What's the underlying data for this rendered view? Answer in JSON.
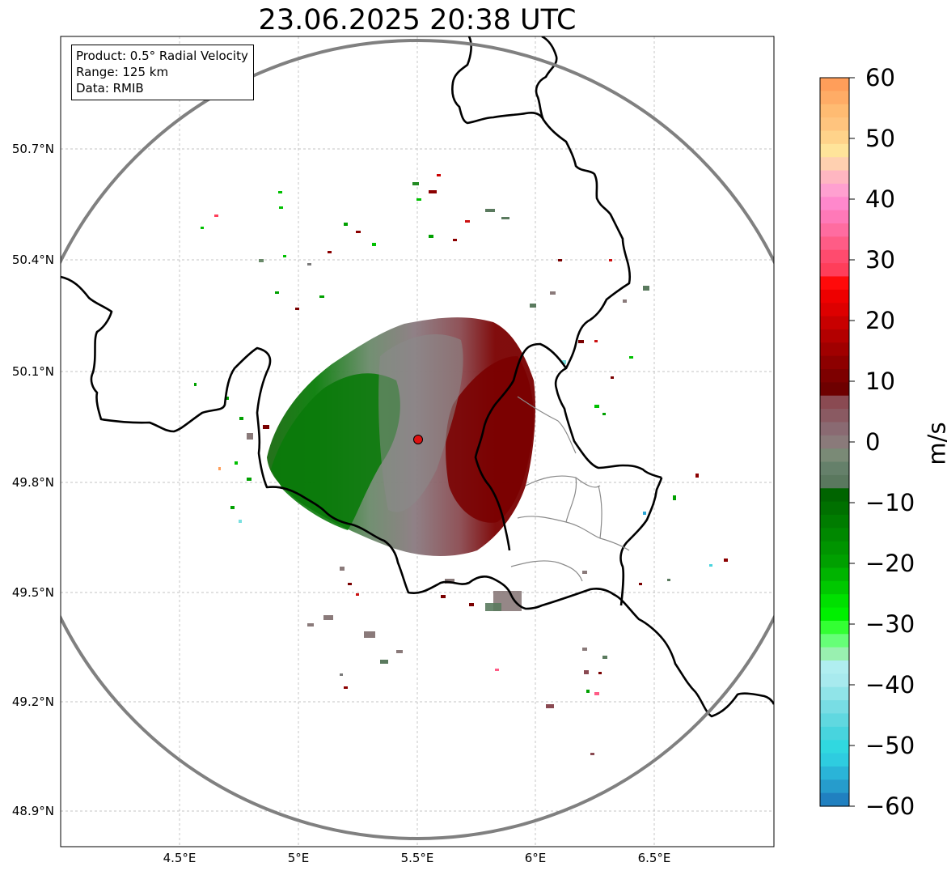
{
  "title": "23.06.2025 20:38 UTC",
  "info": {
    "product": "Product: 0.5° Radial Velocity",
    "range": "Range: 125 km",
    "data": "Data: RMIB"
  },
  "lat_ticks": [
    "50.7°N",
    "50.4°N",
    "50.1°N",
    "49.8°N",
    "49.5°N",
    "49.2°N",
    "48.9°N"
  ],
  "lon_ticks": [
    "4.5°E",
    "5°E",
    "5.5°E",
    "6°E",
    "6.5°E"
  ],
  "colorbar": {
    "unit": "m/s",
    "ticks": [
      "60",
      "50",
      "40",
      "30",
      "20",
      "10",
      "0",
      "−10",
      "−20",
      "−30",
      "−40",
      "−50",
      "−60"
    ],
    "vmin": -60,
    "vmax": 60,
    "colors_top_to_bottom": [
      "#ff9e5a",
      "#ffac66",
      "#ffbb72",
      "#ffc47e",
      "#ffd38a",
      "#ffe49a",
      "#ffd0b0",
      "#ffb6c1",
      "#ffa0d0",
      "#ff88cc",
      "#ff79b8",
      "#ff6ca0",
      "#ff5c86",
      "#ff4b6e",
      "#ff3e5a",
      "#ff0a0a",
      "#ee0000",
      "#dd0000",
      "#c80000",
      "#b30000",
      "#a00000",
      "#8d0000",
      "#7d0000",
      "#6e0000",
      "#8a4a52",
      "#8a5a62",
      "#8a6a72",
      "#8a7a7a",
      "#7a8a76",
      "#65806a",
      "#5a785e",
      "#006400",
      "#007000",
      "#007c00",
      "#008800",
      "#009400",
      "#00a000",
      "#00b400",
      "#00c800",
      "#00e000",
      "#00f000",
      "#33ff33",
      "#66ff77",
      "#99f0b0",
      "#b0eef0",
      "#a8eaee",
      "#90e4e8",
      "#78dde4",
      "#60d8e0",
      "#48d4de",
      "#30d8e0",
      "#2ecce0",
      "#2ab4d8",
      "#269ccc",
      "#2080c0"
    ]
  },
  "radar_site": {
    "lon": 5.505,
    "lat": 49.914,
    "color": "#dd1111"
  },
  "map_extent": {
    "lon_min": 4.0,
    "lon_max": 7.0,
    "lat_min": 48.8,
    "lat_max": 50.98
  }
}
